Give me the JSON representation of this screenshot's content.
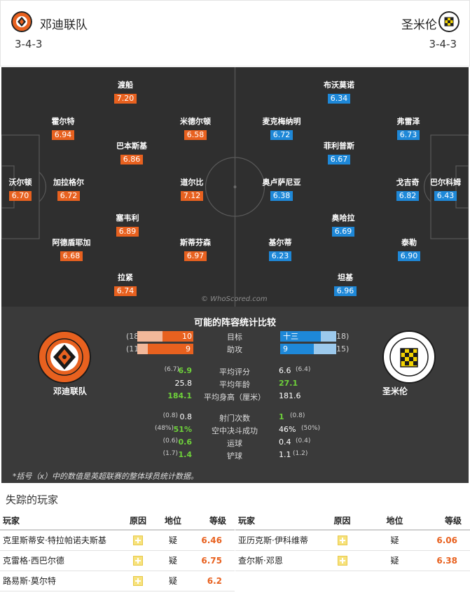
{
  "home": {
    "name": "邓迪联队",
    "formation": "3-4-3",
    "color": "#e8611f",
    "players": [
      {
        "name": "沃尔顿",
        "rating": "6.70"
      },
      {
        "name": "霍尔特",
        "rating": "6.94"
      },
      {
        "name": "加拉格尔",
        "rating": "6.72"
      },
      {
        "name": "阿德盾耶加",
        "rating": "6.68"
      },
      {
        "name": "渡船",
        "rating": "7.20"
      },
      {
        "name": "巴本斯基",
        "rating": "6.86"
      },
      {
        "name": "塞韦利",
        "rating": "6.89"
      },
      {
        "name": "拉紧",
        "rating": "6.74"
      },
      {
        "name": "米德尔顿",
        "rating": "6.58"
      },
      {
        "name": "道尔比",
        "rating": "7.12"
      },
      {
        "name": "斯蒂芬森",
        "rating": "6.97"
      }
    ]
  },
  "away": {
    "name": "圣米伦",
    "formation": "3-4-3",
    "color": "#1e88d8",
    "players": [
      {
        "name": "巴尔科姆",
        "rating": "6.43"
      },
      {
        "name": "弗雷泽",
        "rating": "6.73"
      },
      {
        "name": "戈吉奇",
        "rating": "6.82"
      },
      {
        "name": "泰勒",
        "rating": "6.90"
      },
      {
        "name": "布沃莫诺",
        "rating": "6.34"
      },
      {
        "name": "菲利普斯",
        "rating": "6.67"
      },
      {
        "name": "奥哈拉",
        "rating": "6.69"
      },
      {
        "name": "坦基",
        "rating": "6.96"
      },
      {
        "name": "麦克梅纳明",
        "rating": "6.72"
      },
      {
        "name": "奥卢萨尼亚",
        "rating": "6.38"
      },
      {
        "name": "基尔蒂",
        "rating": "6.23"
      }
    ]
  },
  "watermark": "© WhoScored.com",
  "comparison": {
    "title": "可能的阵容统计比较",
    "bars": [
      {
        "label": "目标",
        "home_value": "10",
        "home_league": "(18",
        "away_value": "十三",
        "away_league": "18)",
        "home_num": 10,
        "home_max": 18,
        "away_num": 13,
        "away_max": 18
      },
      {
        "label": "助攻",
        "home_value": "9",
        "home_league": "(11",
        "away_value": "9",
        "away_league": "15)",
        "home_num": 9,
        "home_max": 11,
        "away_num": 9,
        "away_max": 15
      }
    ],
    "rows1": [
      {
        "label": "平均评分",
        "home_sub": "(6.7)",
        "home": "6.9",
        "away": "6.6",
        "away_sub": "(6.4)"
      },
      {
        "label": "平均年龄",
        "home_sub": "",
        "home": "25.8",
        "away": "27.1",
        "away_sub": ""
      },
      {
        "label": "平均身高（厘米）",
        "home_sub": "",
        "home": "184.1",
        "away": "181.6",
        "away_sub": ""
      }
    ],
    "rows2": [
      {
        "label": "射门次数",
        "home_sub": "(0.8)",
        "home": "0.8",
        "away": "1",
        "away_sub": "(0.8)"
      },
      {
        "label": "空中决斗成功",
        "home_sub": "(48%)",
        "home": "51%",
        "away": "46%",
        "away_sub": "(50%)"
      },
      {
        "label": "运球",
        "home_sub": "(0.6)",
        "home": "0.6",
        "away": "0.4",
        "away_sub": "(0.4)"
      },
      {
        "label": "铲球",
        "home_sub": "(1.7)",
        "home": "1.4",
        "away": "1.1",
        "away_sub": "(1.2)"
      }
    ],
    "note": "*括号（x）中的数值是英超联赛的整体球员统计数据。"
  },
  "missing": {
    "title": "失踪的玩家",
    "headers": {
      "player": "玩家",
      "reason": "原因",
      "status": "地位",
      "grade": "等级"
    },
    "home": [
      {
        "player": "克里斯蒂安·特拉帕诺夫斯基",
        "status": "疑",
        "grade": "6.46"
      },
      {
        "player": "克雷格·西巴尔德",
        "status": "疑",
        "grade": "6.75"
      },
      {
        "player": "路易斯·莫尔特",
        "status": "疑",
        "grade": "6.2"
      }
    ],
    "away": [
      {
        "player": "亚历克斯·伊科维蒂",
        "status": "疑",
        "grade": "6.06"
      },
      {
        "player": "查尔斯·邓恩",
        "status": "疑",
        "grade": "6.38"
      }
    ]
  }
}
